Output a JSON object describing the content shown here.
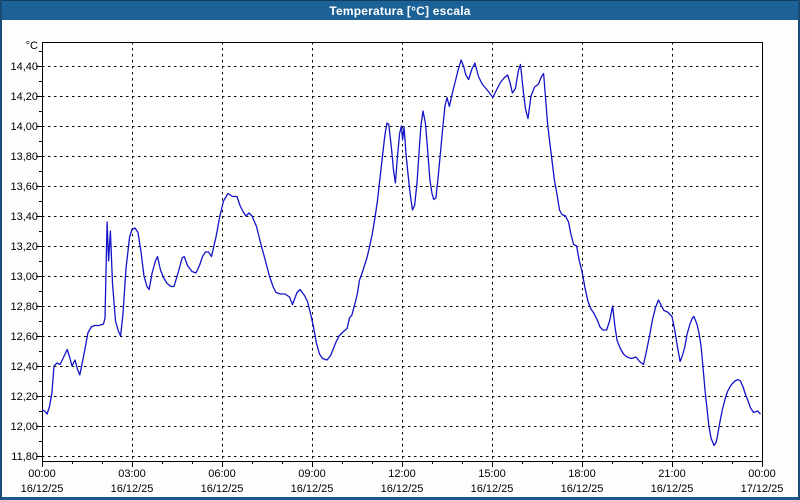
{
  "window": {
    "title": "Temperatura [°C] escala"
  },
  "colors": {
    "title_bar": "#1d6296",
    "frame": "#184a73",
    "window_background": "#fafcf8",
    "plot_background": "#fffffe",
    "grid": "#000000",
    "line": "#1414c8",
    "label_text": "#000000",
    "title_text": "#ffffff"
  },
  "chart_data": {
    "type": "line",
    "title": "Temperatura [°C] escala",
    "unit_label": "°C",
    "grid": "dashed",
    "legend": "none",
    "x_axis": {
      "range_hours": [
        0,
        24
      ],
      "major_tick_hours": 3,
      "minor_tick_hours": 1,
      "ticks": [
        {
          "t": 0,
          "time": "00:00",
          "date": "16/12/25"
        },
        {
          "t": 3,
          "time": "03:00",
          "date": "16/12/25"
        },
        {
          "t": 6,
          "time": "06:00",
          "date": "16/12/25"
        },
        {
          "t": 9,
          "time": "09:00",
          "date": "16/12/25"
        },
        {
          "t": 12,
          "time": "12:00",
          "date": "16/12/25"
        },
        {
          "t": 15,
          "time": "15:00",
          "date": "16/12/25"
        },
        {
          "t": 18,
          "time": "18:00",
          "date": "16/12/25"
        },
        {
          "t": 21,
          "time": "21:00",
          "date": "16/12/25"
        },
        {
          "t": 24,
          "time": "00:00",
          "date": "17/12/25"
        }
      ]
    },
    "y_axis": {
      "view_min": 11.767,
      "view_max": 14.56,
      "tick_step": 0.2,
      "minor_step": 0.1,
      "ticks": [
        {
          "value": 14.4,
          "label": "14,40"
        },
        {
          "value": 14.2,
          "label": "14,20"
        },
        {
          "value": 14.0,
          "label": "14,00"
        },
        {
          "value": 13.8,
          "label": "13,80"
        },
        {
          "value": 13.6,
          "label": "13,60"
        },
        {
          "value": 13.4,
          "label": "13,40"
        },
        {
          "value": 13.2,
          "label": "13,20"
        },
        {
          "value": 13.0,
          "label": "13,00"
        },
        {
          "value": 12.8,
          "label": "12,80"
        },
        {
          "value": 12.6,
          "label": "12,60"
        },
        {
          "value": 12.4,
          "label": "12,40"
        },
        {
          "value": 12.2,
          "label": "12,20"
        },
        {
          "value": 12.0,
          "label": "12,00"
        },
        {
          "value": 11.8,
          "label": "11,80"
        }
      ]
    },
    "series": [
      {
        "name": "Temperatura",
        "color": "#1414c8",
        "points": [
          [
            0,
            12.11
          ],
          [
            0.08,
            12.1
          ],
          [
            0.17,
            12.08
          ],
          [
            0.25,
            12.13
          ],
          [
            0.33,
            12.22
          ],
          [
            0.4,
            12.4
          ],
          [
            0.5,
            12.42
          ],
          [
            0.6,
            12.41
          ],
          [
            0.7,
            12.45
          ],
          [
            0.84,
            12.51
          ],
          [
            0.92,
            12.46
          ],
          [
            1,
            12.4
          ],
          [
            1.1,
            12.44
          ],
          [
            1.18,
            12.38
          ],
          [
            1.26,
            12.34
          ],
          [
            1.4,
            12.48
          ],
          [
            1.53,
            12.62
          ],
          [
            1.64,
            12.66
          ],
          [
            1.75,
            12.67
          ],
          [
            1.9,
            12.67
          ],
          [
            2.05,
            12.68
          ],
          [
            2.1,
            12.72
          ],
          [
            2.17,
            13.36
          ],
          [
            2.22,
            13.1
          ],
          [
            2.28,
            13.3
          ],
          [
            2.35,
            12.95
          ],
          [
            2.45,
            12.7
          ],
          [
            2.55,
            12.63
          ],
          [
            2.62,
            12.6
          ],
          [
            2.7,
            12.75
          ],
          [
            2.8,
            13.05
          ],
          [
            2.92,
            13.26
          ],
          [
            3,
            13.31
          ],
          [
            3.1,
            13.32
          ],
          [
            3.2,
            13.29
          ],
          [
            3.3,
            13.16
          ],
          [
            3.4,
            13
          ],
          [
            3.5,
            12.93
          ],
          [
            3.57,
            12.91
          ],
          [
            3.67,
            13.02
          ],
          [
            3.78,
            13.1
          ],
          [
            3.85,
            13.13
          ],
          [
            3.95,
            13.04
          ],
          [
            4.05,
            12.99
          ],
          [
            4.17,
            12.95
          ],
          [
            4.3,
            12.93
          ],
          [
            4.4,
            12.93
          ],
          [
            4.55,
            13.03
          ],
          [
            4.67,
            13.12
          ],
          [
            4.74,
            13.13
          ],
          [
            4.85,
            13.07
          ],
          [
            5,
            13.03
          ],
          [
            5.13,
            13.02
          ],
          [
            5.25,
            13.07
          ],
          [
            5.35,
            13.13
          ],
          [
            5.45,
            13.16
          ],
          [
            5.55,
            13.16
          ],
          [
            5.65,
            13.13
          ],
          [
            5.8,
            13.26
          ],
          [
            5.93,
            13.4
          ],
          [
            6.05,
            13.5
          ],
          [
            6.2,
            13.55
          ],
          [
            6.35,
            13.53
          ],
          [
            6.5,
            13.53
          ],
          [
            6.6,
            13.47
          ],
          [
            6.7,
            13.43
          ],
          [
            6.8,
            13.4
          ],
          [
            6.9,
            13.42
          ],
          [
            7,
            13.4
          ],
          [
            7.15,
            13.33
          ],
          [
            7.3,
            13.21
          ],
          [
            7.45,
            13.1
          ],
          [
            7.58,
            13
          ],
          [
            7.7,
            12.93
          ],
          [
            7.8,
            12.89
          ],
          [
            7.95,
            12.88
          ],
          [
            8.1,
            12.88
          ],
          [
            8.25,
            12.86
          ],
          [
            8.35,
            12.81
          ],
          [
            8.5,
            12.89
          ],
          [
            8.6,
            12.91
          ],
          [
            8.75,
            12.87
          ],
          [
            8.85,
            12.83
          ],
          [
            8.95,
            12.75
          ],
          [
            9.05,
            12.66
          ],
          [
            9.15,
            12.55
          ],
          [
            9.25,
            12.48
          ],
          [
            9.35,
            12.45
          ],
          [
            9.5,
            12.44
          ],
          [
            9.62,
            12.47
          ],
          [
            9.7,
            12.51
          ],
          [
            9.8,
            12.56
          ],
          [
            9.9,
            12.6
          ],
          [
            10.05,
            12.63
          ],
          [
            10.17,
            12.65
          ],
          [
            10.25,
            12.72
          ],
          [
            10.33,
            12.74
          ],
          [
            10.45,
            12.83
          ],
          [
            10.52,
            12.89
          ],
          [
            10.58,
            12.97
          ],
          [
            10.67,
            13.02
          ],
          [
            10.75,
            13.07
          ],
          [
            10.83,
            13.12
          ],
          [
            10.9,
            13.18
          ],
          [
            11,
            13.27
          ],
          [
            11.1,
            13.39
          ],
          [
            11.18,
            13.5
          ],
          [
            11.27,
            13.66
          ],
          [
            11.35,
            13.8
          ],
          [
            11.43,
            13.94
          ],
          [
            11.5,
            14.02
          ],
          [
            11.56,
            14.01
          ],
          [
            11.65,
            13.85
          ],
          [
            11.72,
            13.7
          ],
          [
            11.78,
            13.62
          ],
          [
            11.85,
            13.8
          ],
          [
            11.92,
            13.95
          ],
          [
            11.98,
            14
          ],
          [
            12.02,
            13.91
          ],
          [
            12.07,
            13.99
          ],
          [
            12.13,
            13.82
          ],
          [
            12.2,
            13.68
          ],
          [
            12.27,
            13.55
          ],
          [
            12.35,
            13.44
          ],
          [
            12.42,
            13.47
          ],
          [
            12.5,
            13.62
          ],
          [
            12.57,
            13.83
          ],
          [
            12.63,
            14
          ],
          [
            12.7,
            14.1
          ],
          [
            12.78,
            14.02
          ],
          [
            12.85,
            13.85
          ],
          [
            12.93,
            13.64
          ],
          [
            13,
            13.55
          ],
          [
            13.06,
            13.51
          ],
          [
            13.13,
            13.52
          ],
          [
            13.21,
            13.67
          ],
          [
            13.28,
            13.82
          ],
          [
            13.35,
            13.97
          ],
          [
            13.43,
            14.13
          ],
          [
            13.5,
            14.19
          ],
          [
            13.58,
            14.13
          ],
          [
            13.68,
            14.22
          ],
          [
            13.78,
            14.3
          ],
          [
            13.88,
            14.38
          ],
          [
            13.97,
            14.44
          ],
          [
            14.05,
            14.4
          ],
          [
            14.13,
            14.34
          ],
          [
            14.22,
            14.31
          ],
          [
            14.33,
            14.38
          ],
          [
            14.43,
            14.42
          ],
          [
            14.55,
            14.33
          ],
          [
            14.67,
            14.28
          ],
          [
            14.8,
            14.25
          ],
          [
            14.92,
            14.22
          ],
          [
            15.03,
            14.19
          ],
          [
            15.15,
            14.24
          ],
          [
            15.28,
            14.29
          ],
          [
            15.4,
            14.32
          ],
          [
            15.52,
            14.34
          ],
          [
            15.6,
            14.29
          ],
          [
            15.68,
            14.22
          ],
          [
            15.78,
            14.25
          ],
          [
            15.88,
            14.37
          ],
          [
            15.95,
            14.41
          ],
          [
            16.05,
            14.22
          ],
          [
            16.12,
            14.11
          ],
          [
            16.2,
            14.05
          ],
          [
            16.3,
            14.2
          ],
          [
            16.42,
            14.26
          ],
          [
            16.55,
            14.28
          ],
          [
            16.65,
            14.33
          ],
          [
            16.72,
            14.35
          ],
          [
            16.8,
            14.15
          ],
          [
            16.85,
            14.02
          ],
          [
            16.92,
            13.9
          ],
          [
            17,
            13.77
          ],
          [
            17.08,
            13.64
          ],
          [
            17.17,
            13.54
          ],
          [
            17.25,
            13.44
          ],
          [
            17.33,
            13.41
          ],
          [
            17.45,
            13.4
          ],
          [
            17.55,
            13.36
          ],
          [
            17.63,
            13.28
          ],
          [
            17.72,
            13.21
          ],
          [
            17.82,
            13.2
          ],
          [
            17.9,
            13.11
          ],
          [
            18,
            13.03
          ],
          [
            18.1,
            12.92
          ],
          [
            18.2,
            12.83
          ],
          [
            18.3,
            12.78
          ],
          [
            18.4,
            12.75
          ],
          [
            18.5,
            12.71
          ],
          [
            18.6,
            12.66
          ],
          [
            18.7,
            12.64
          ],
          [
            18.82,
            12.64
          ],
          [
            18.92,
            12.7
          ],
          [
            19.02,
            12.8
          ],
          [
            19.1,
            12.66
          ],
          [
            19.17,
            12.57
          ],
          [
            19.27,
            12.52
          ],
          [
            19.38,
            12.48
          ],
          [
            19.5,
            12.46
          ],
          [
            19.65,
            12.45
          ],
          [
            19.8,
            12.46
          ],
          [
            19.92,
            12.43
          ],
          [
            20.05,
            12.41
          ],
          [
            20.15,
            12.5
          ],
          [
            20.25,
            12.6
          ],
          [
            20.35,
            12.71
          ],
          [
            20.45,
            12.79
          ],
          [
            20.55,
            12.84
          ],
          [
            20.65,
            12.8
          ],
          [
            20.73,
            12.77
          ],
          [
            20.85,
            12.76
          ],
          [
            20.95,
            12.74
          ],
          [
            21,
            12.73
          ],
          [
            21.1,
            12.63
          ],
          [
            21.18,
            12.53
          ],
          [
            21.27,
            12.43
          ],
          [
            21.33,
            12.46
          ],
          [
            21.42,
            12.52
          ],
          [
            21.5,
            12.61
          ],
          [
            21.6,
            12.68
          ],
          [
            21.68,
            12.72
          ],
          [
            21.73,
            12.73
          ],
          [
            21.83,
            12.68
          ],
          [
            21.9,
            12.62
          ],
          [
            21.97,
            12.53
          ],
          [
            22.03,
            12.4
          ],
          [
            22.1,
            12.24
          ],
          [
            22.17,
            12.11
          ],
          [
            22.23,
            12
          ],
          [
            22.3,
            11.92
          ],
          [
            22.4,
            11.87
          ],
          [
            22.47,
            11.89
          ],
          [
            22.53,
            11.95
          ],
          [
            22.6,
            12.03
          ],
          [
            22.68,
            12.11
          ],
          [
            22.77,
            12.18
          ],
          [
            22.85,
            12.23
          ],
          [
            22.93,
            12.26
          ],
          [
            23,
            12.28
          ],
          [
            23.1,
            12.3
          ],
          [
            23.2,
            12.31
          ],
          [
            23.28,
            12.3
          ],
          [
            23.37,
            12.26
          ],
          [
            23.45,
            12.21
          ],
          [
            23.53,
            12.17
          ],
          [
            23.62,
            12.12
          ],
          [
            23.72,
            12.09
          ],
          [
            23.85,
            12.1
          ],
          [
            23.95,
            12.08
          ]
        ]
      }
    ]
  }
}
